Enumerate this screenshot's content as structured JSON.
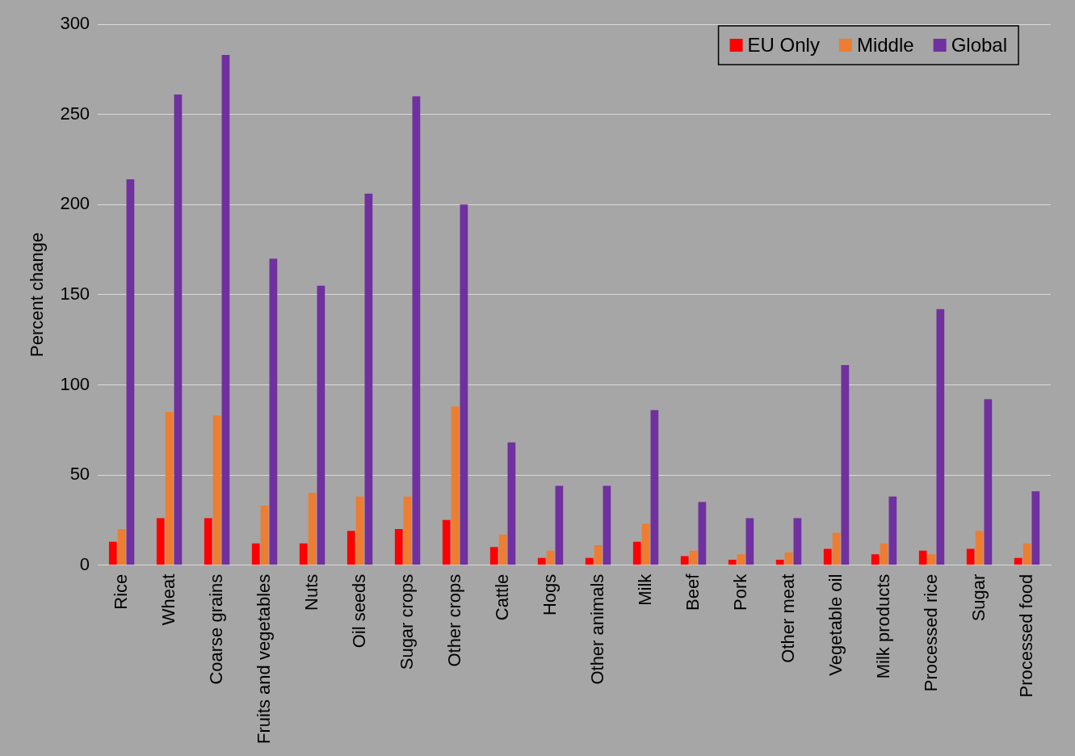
{
  "chart_data": {
    "type": "bar",
    "y_label": "Percent change",
    "categories": [
      "Rice",
      "Wheat",
      "Coarse grains",
      "Fruits and vegetables",
      "Nuts",
      "Oil seeds",
      "Sugar crops",
      "Other crops",
      "Cattle",
      "Hogs",
      "Other animals",
      "Milk",
      "Beef",
      "Pork",
      "Other meat",
      "Vegetable oil",
      "Milk products",
      "Processed rice",
      "Sugar",
      "Processed food"
    ],
    "series": [
      {
        "name": "EU Only",
        "color": "#ff0000",
        "values": [
          13,
          26,
          26,
          12,
          12,
          19,
          20,
          25,
          10,
          4,
          4,
          13,
          5,
          3,
          3,
          9,
          6,
          8,
          9,
          4
        ]
      },
      {
        "name": "Middle",
        "color": "#ed7d31",
        "values": [
          20,
          85,
          83,
          33,
          40,
          38,
          38,
          88,
          17,
          8,
          11,
          23,
          8,
          6,
          7,
          18,
          12,
          6,
          19,
          12
        ]
      },
      {
        "name": "Global",
        "color": "#7030a0",
        "values": [
          214,
          261,
          283,
          170,
          155,
          206,
          260,
          200,
          68,
          44,
          44,
          86,
          35,
          26,
          26,
          111,
          38,
          142,
          92,
          41
        ]
      }
    ],
    "ylim": [
      0,
      300
    ],
    "yticks": [
      0,
      50,
      100,
      150,
      200,
      250,
      300
    ],
    "grid": true,
    "legend": "upper right"
  }
}
